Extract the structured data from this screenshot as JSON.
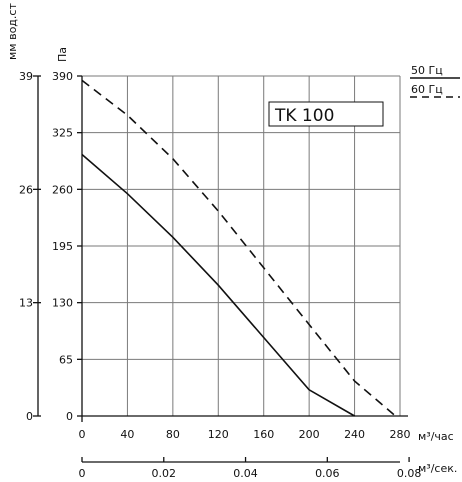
{
  "chart_data": {
    "type": "line",
    "title_box": "TK 100",
    "y_units_left_outer": "мм вод.ст",
    "y_units_left_inner": "Па",
    "x_units_bottom": "м³/час",
    "x_units_secondary": "м³/сек.",
    "xlim": [
      0,
      280
    ],
    "ylim": [
      0,
      390
    ],
    "x_ticks": [
      0,
      40,
      80,
      120,
      160,
      200,
      240,
      280
    ],
    "y_ticks_pa": [
      0,
      65,
      130,
      195,
      260,
      325,
      390
    ],
    "y_ticks_mm": [
      0,
      13,
      26,
      39
    ],
    "x_ticks_secondary": [
      "0",
      "0.02",
      "0.04",
      "0.06",
      "0.08"
    ],
    "grid": true,
    "legend": [
      {
        "label": "50 Гц",
        "style": "solid"
      },
      {
        "label": "60 Гц",
        "style": "dashed"
      }
    ],
    "series": [
      {
        "name": "50 Гц",
        "style": "solid",
        "x": [
          0,
          40,
          80,
          120,
          160,
          200,
          240
        ],
        "y": [
          300,
          255,
          205,
          150,
          90,
          30,
          0
        ]
      },
      {
        "name": "60 Гц",
        "style": "dashed",
        "x": [
          0,
          40,
          80,
          120,
          160,
          200,
          240,
          276
        ],
        "y": [
          385,
          345,
          295,
          235,
          170,
          105,
          40,
          0
        ]
      }
    ]
  }
}
